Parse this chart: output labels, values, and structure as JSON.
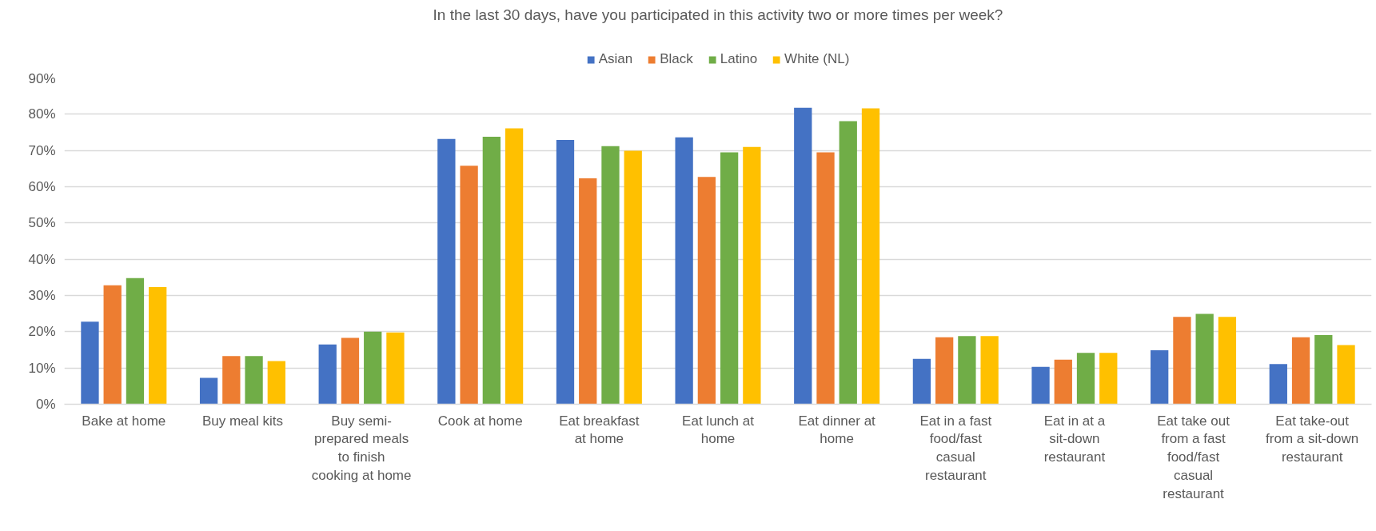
{
  "chart_data": {
    "type": "bar",
    "title": "In the last 30 days, have you participated in this activity two or more times per week?",
    "categories": [
      "Bake at home",
      "Buy meal kits",
      "Buy semi-prepared meals to finish cooking at home",
      "Cook at home",
      "Eat breakfast at home",
      "Eat lunch at home",
      "Eat dinner at home",
      "Eat in a fast food/fast casual restaurant",
      "Eat in at a sit-down restaurant",
      "Eat take out from a fast food/fast casual restaurant",
      "Eat take-out from a sit-down restaurant"
    ],
    "series": [
      {
        "name": "Asian",
        "color": "#4472c4",
        "values": [
          22.8,
          7.3,
          16.5,
          73.2,
          72.9,
          73.6,
          81.8,
          12.5,
          10.3,
          14.9,
          11.1
        ]
      },
      {
        "name": "Black",
        "color": "#ed7d31",
        "values": [
          32.8,
          13.3,
          18.3,
          65.8,
          62.3,
          62.7,
          69.5,
          18.5,
          12.3,
          24.1,
          18.5
        ]
      },
      {
        "name": "Latino",
        "color": "#70ad47",
        "values": [
          34.8,
          13.3,
          20.0,
          73.8,
          71.2,
          69.5,
          78.1,
          18.8,
          14.2,
          24.9,
          19.1
        ]
      },
      {
        "name": "White (NL)",
        "color": "#ffc000",
        "values": [
          32.3,
          11.9,
          19.8,
          76.1,
          69.9,
          71.0,
          81.6,
          18.8,
          14.2,
          24.1,
          16.3
        ]
      }
    ],
    "ylim": [
      0,
      90
    ],
    "yticks": [
      {
        "value": 0,
        "label": "0%"
      },
      {
        "value": 10,
        "label": "10%"
      },
      {
        "value": 20,
        "label": "20%"
      },
      {
        "value": 30,
        "label": "30%"
      },
      {
        "value": 40,
        "label": "40%"
      },
      {
        "value": 50,
        "label": "50%"
      },
      {
        "value": 60,
        "label": "60%"
      },
      {
        "value": 70,
        "label": "70%"
      },
      {
        "value": 80,
        "label": "80%"
      },
      {
        "value": 90,
        "label": "90%"
      }
    ],
    "grid": "y",
    "legend": "top"
  }
}
